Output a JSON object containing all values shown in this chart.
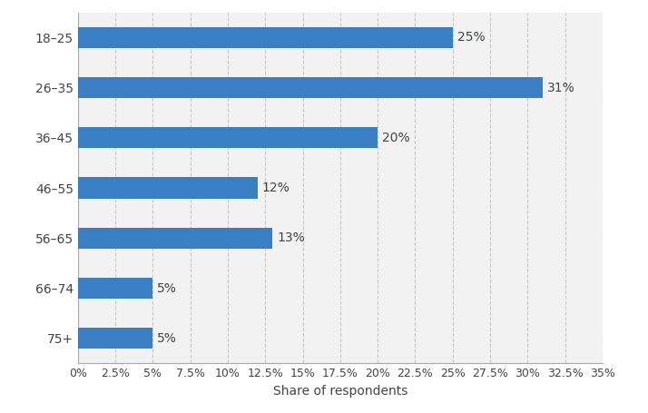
{
  "categories": [
    "18–25",
    "26–35",
    "36–45",
    "46–55",
    "56–65",
    "66–74",
    "75+"
  ],
  "values": [
    25,
    31,
    20,
    12,
    13,
    5,
    5
  ],
  "bar_color": "#3a7ec4",
  "xlabel": "Share of respondents",
  "xlim": [
    0,
    35
  ],
  "xticks": [
    0,
    2.5,
    5,
    7.5,
    10,
    12.5,
    15,
    17.5,
    20,
    22.5,
    25,
    27.5,
    30,
    32.5,
    35
  ],
  "background_color": "#ffffff",
  "plot_background_color": "#f2f2f2",
  "grid_color": "#c8c8c8",
  "label_fontsize": 10,
  "tick_fontsize": 9,
  "bar_height": 0.42
}
